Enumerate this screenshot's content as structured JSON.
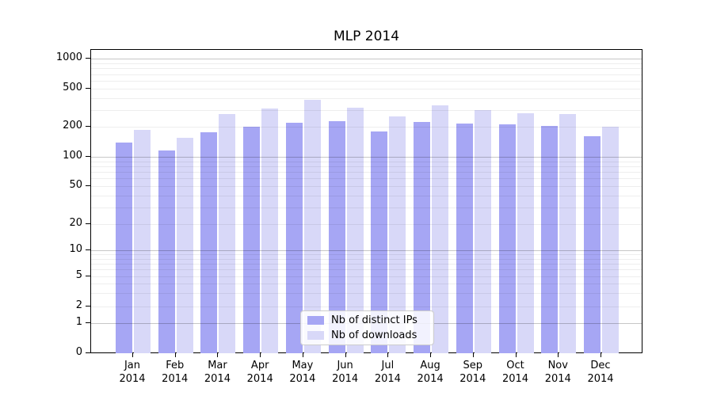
{
  "title": "MLP 2014",
  "chart_data": {
    "type": "bar",
    "title": "MLP 2014",
    "categories": [
      "Jan 2014",
      "Feb 2014",
      "Mar 2014",
      "Apr 2014",
      "May 2014",
      "Jun 2014",
      "Jul 2014",
      "Aug 2014",
      "Sep 2014",
      "Oct 2014",
      "Nov 2014",
      "Dec 2014"
    ],
    "series": [
      {
        "name": "Nb of distinct IPs",
        "color": "#a6a6f4",
        "values": [
          140,
          115,
          175,
          200,
          220,
          230,
          180,
          225,
          215,
          210,
          205,
          160
        ]
      },
      {
        "name": "Nb of downloads",
        "color": "#d8d8f8",
        "values": [
          185,
          155,
          270,
          310,
          380,
          315,
          255,
          335,
          300,
          275,
          270,
          200
        ]
      }
    ],
    "yscale": "log-like (symlog, linear below 1)",
    "yticks": [
      1000,
      500,
      200,
      100,
      50,
      20,
      10,
      5,
      2,
      1,
      0
    ],
    "major_grid_values": [
      1,
      10,
      100,
      1000
    ],
    "ylim": [
      0,
      1200
    ],
    "grid": "horizontal log minor+major gridlines",
    "legend_position": "inside bottom-center",
    "colors": {
      "axis": "#000000",
      "minor_grid": "#ededed",
      "major_grid": "#c9c9c9"
    }
  }
}
